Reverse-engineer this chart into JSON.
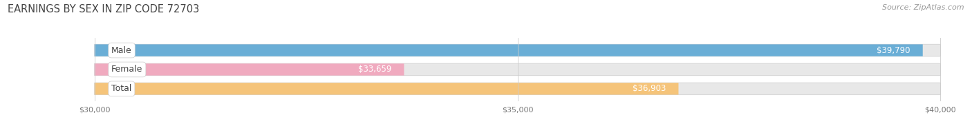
{
  "title": "EARNINGS BY SEX IN ZIP CODE 72703",
  "source": "Source: ZipAtlas.com",
  "categories": [
    "Male",
    "Female",
    "Total"
  ],
  "values": [
    39790,
    33659,
    36903
  ],
  "bar_colors": [
    "#6aaed6",
    "#f0aabf",
    "#f5c47a"
  ],
  "track_color": "#e8e8e8",
  "track_border_color": "#d8d8d8",
  "x_min": 30000,
  "x_max": 40000,
  "x_ticks": [
    30000,
    35000,
    40000
  ],
  "x_tick_labels": [
    "$30,000",
    "$35,000",
    "$40,000"
  ],
  "title_fontsize": 10.5,
  "source_fontsize": 8,
  "bar_label_fontsize": 8.5,
  "category_label_fontsize": 9,
  "tick_fontsize": 8,
  "background_color": "#ffffff",
  "value_labels": [
    "$39,790",
    "$33,659",
    "$36,903"
  ]
}
